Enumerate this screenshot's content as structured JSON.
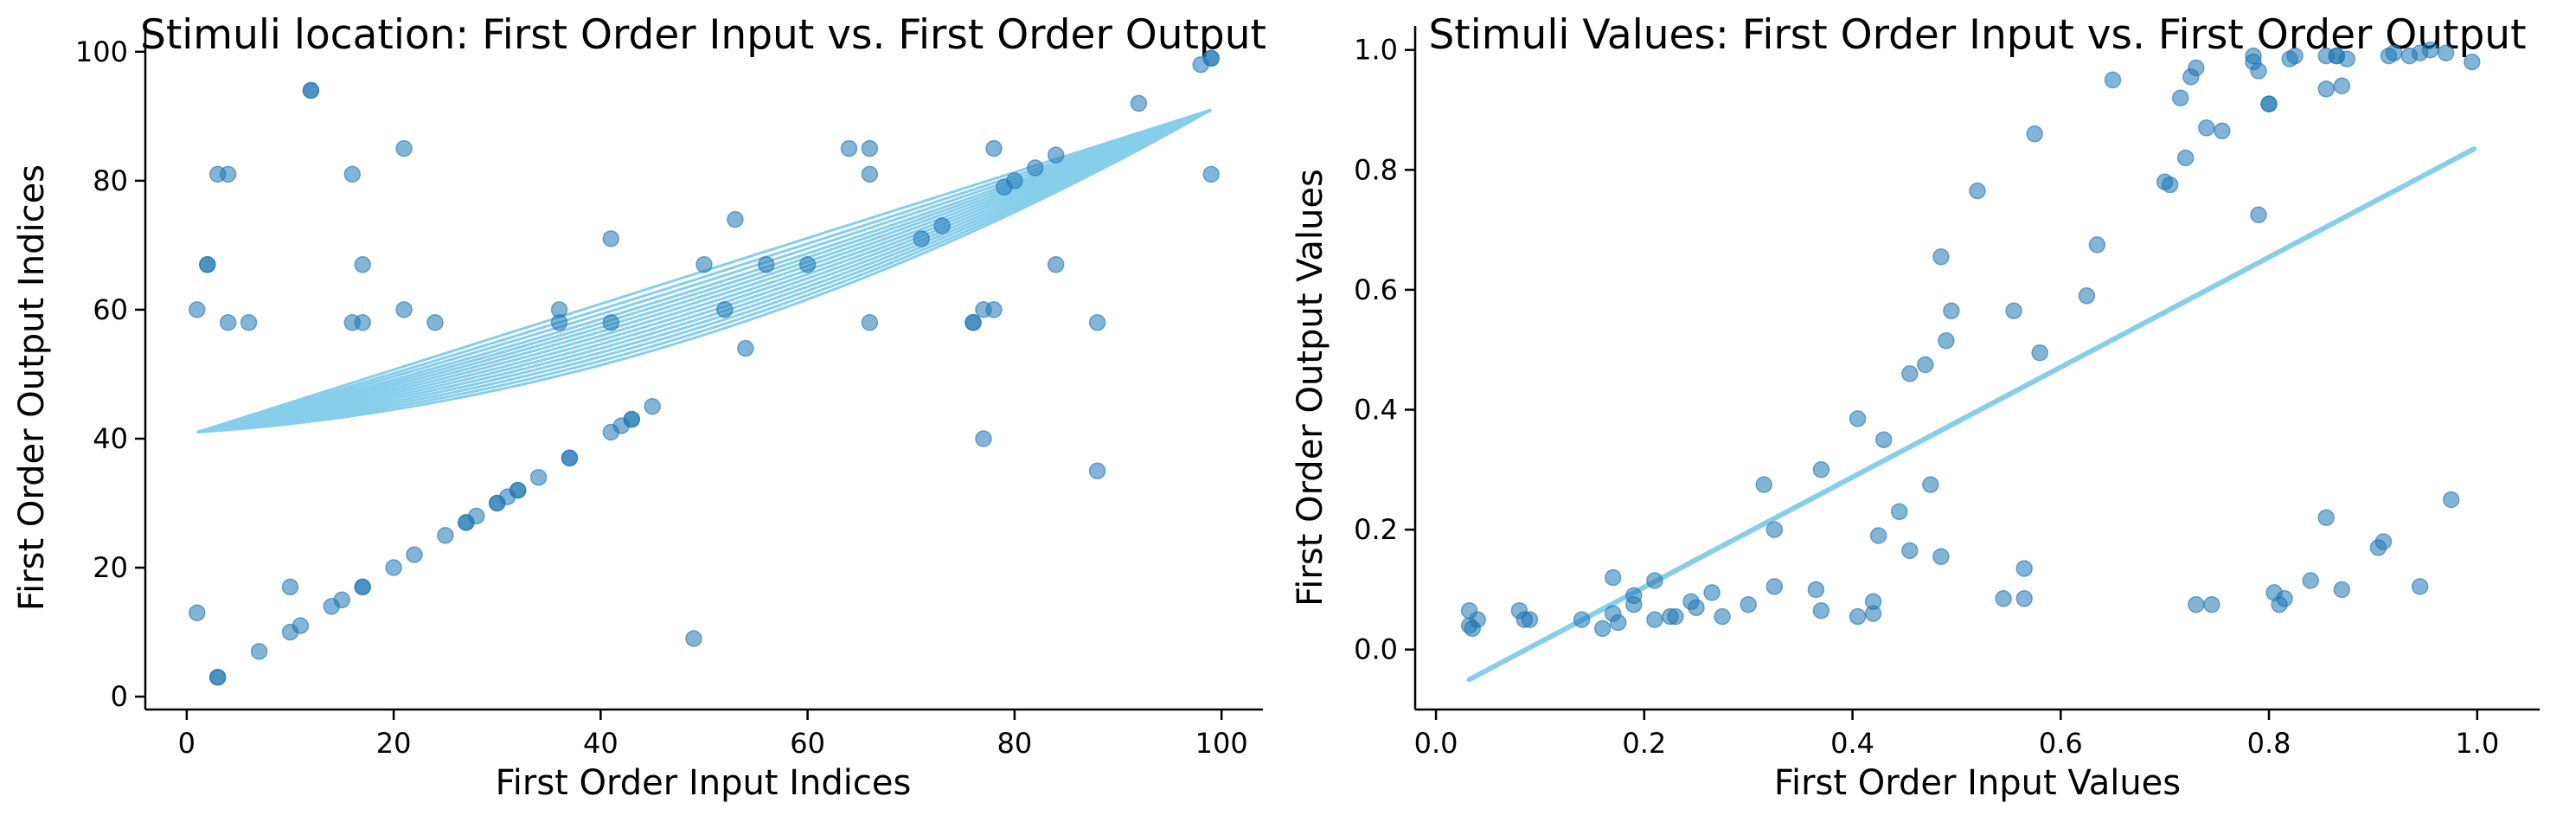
{
  "chart_data": [
    {
      "type": "scatter",
      "title": "Stimuli location: First Order Input vs. First Order Output",
      "xlabel": "First Order Input Indices",
      "ylabel": "First Order Output Indices",
      "xlim": [
        -4,
        104
      ],
      "ylim": [
        -2,
        104
      ],
      "xticks": [
        0,
        20,
        40,
        60,
        80,
        100
      ],
      "yticks": [
        0,
        20,
        40,
        60,
        80,
        100
      ],
      "grid": false,
      "points": [
        [
          1,
          60
        ],
        [
          1,
          13
        ],
        [
          2,
          67
        ],
        [
          2,
          67
        ],
        [
          3,
          81
        ],
        [
          3,
          3
        ],
        [
          3,
          3
        ],
        [
          4,
          58
        ],
        [
          4,
          81
        ],
        [
          6,
          58
        ],
        [
          7,
          7
        ],
        [
          10,
          10
        ],
        [
          10,
          17
        ],
        [
          11,
          11
        ],
        [
          12,
          94
        ],
        [
          12,
          94
        ],
        [
          14,
          14
        ],
        [
          15,
          15
        ],
        [
          16,
          81
        ],
        [
          16,
          58
        ],
        [
          17,
          58
        ],
        [
          17,
          67
        ],
        [
          17,
          17
        ],
        [
          17,
          17
        ],
        [
          20,
          20
        ],
        [
          21,
          60
        ],
        [
          21,
          85
        ],
        [
          22,
          22
        ],
        [
          24,
          58
        ],
        [
          25,
          25
        ],
        [
          27,
          27
        ],
        [
          27,
          27
        ],
        [
          28,
          28
        ],
        [
          30,
          30
        ],
        [
          30,
          30
        ],
        [
          31,
          31
        ],
        [
          32,
          32
        ],
        [
          32,
          32
        ],
        [
          34,
          34
        ],
        [
          36,
          58
        ],
        [
          36,
          60
        ],
        [
          37,
          37
        ],
        [
          37,
          37
        ],
        [
          41,
          71
        ],
        [
          41,
          58
        ],
        [
          41,
          41
        ],
        [
          42,
          42
        ],
        [
          43,
          43
        ],
        [
          43,
          43
        ],
        [
          45,
          45
        ],
        [
          49,
          9
        ],
        [
          50,
          67
        ],
        [
          52,
          60
        ],
        [
          53,
          74
        ],
        [
          54,
          54
        ],
        [
          56,
          67
        ],
        [
          60,
          67
        ],
        [
          64,
          85
        ],
        [
          66,
          85
        ],
        [
          66,
          81
        ],
        [
          66,
          58
        ],
        [
          71,
          71
        ],
        [
          73,
          73
        ],
        [
          76,
          58
        ],
        [
          76,
          58
        ],
        [
          77,
          60
        ],
        [
          77,
          40
        ],
        [
          78,
          60
        ],
        [
          78,
          85
        ],
        [
          79,
          79
        ],
        [
          80,
          80
        ],
        [
          82,
          82
        ],
        [
          84,
          84
        ],
        [
          84,
          67
        ],
        [
          88,
          58
        ],
        [
          88,
          35
        ],
        [
          92,
          92
        ],
        [
          98,
          98
        ],
        [
          99,
          99
        ],
        [
          99,
          99
        ],
        [
          99,
          81
        ]
      ],
      "fit_line": {
        "description": "curve through hull-like fan",
        "start": [
          1,
          41
        ],
        "end": [
          99,
          91
        ],
        "color": "#87ceeb"
      }
    },
    {
      "type": "scatter",
      "title": "Stimuli Values: First Order Input vs. First Order Output",
      "xlabel": "First Order Input Values",
      "ylabel": "First Order Output Values",
      "xlim": [
        -0.02,
        1.06
      ],
      "ylim": [
        -0.1,
        1.04
      ],
      "xticks": [
        0.0,
        0.2,
        0.4,
        0.6,
        0.8,
        1.0
      ],
      "yticks": [
        0.0,
        0.2,
        0.4,
        0.6,
        0.8,
        1.0
      ],
      "grid": false,
      "points": [
        [
          0.032,
          0.065
        ],
        [
          0.032,
          0.04
        ],
        [
          0.035,
          0.035
        ],
        [
          0.04,
          0.05
        ],
        [
          0.08,
          0.065
        ],
        [
          0.085,
          0.05
        ],
        [
          0.09,
          0.05
        ],
        [
          0.14,
          0.05
        ],
        [
          0.16,
          0.035
        ],
        [
          0.17,
          0.12
        ],
        [
          0.17,
          0.06
        ],
        [
          0.175,
          0.045
        ],
        [
          0.19,
          0.075
        ],
        [
          0.19,
          0.09
        ],
        [
          0.21,
          0.115
        ],
        [
          0.21,
          0.05
        ],
        [
          0.225,
          0.055
        ],
        [
          0.23,
          0.055
        ],
        [
          0.245,
          0.08
        ],
        [
          0.25,
          0.07
        ],
        [
          0.265,
          0.095
        ],
        [
          0.275,
          0.055
        ],
        [
          0.3,
          0.075
        ],
        [
          0.315,
          0.275
        ],
        [
          0.325,
          0.2
        ],
        [
          0.325,
          0.105
        ],
        [
          0.37,
          0.3
        ],
        [
          0.37,
          0.065
        ],
        [
          0.365,
          0.1
        ],
        [
          0.405,
          0.385
        ],
        [
          0.405,
          0.055
        ],
        [
          0.42,
          0.08
        ],
        [
          0.42,
          0.06
        ],
        [
          0.425,
          0.19
        ],
        [
          0.43,
          0.35
        ],
        [
          0.445,
          0.23
        ],
        [
          0.455,
          0.165
        ],
        [
          0.455,
          0.46
        ],
        [
          0.47,
          0.475
        ],
        [
          0.475,
          0.275
        ],
        [
          0.485,
          0.655
        ],
        [
          0.485,
          0.155
        ],
        [
          0.49,
          0.515
        ],
        [
          0.495,
          0.565
        ],
        [
          0.52,
          0.765
        ],
        [
          0.545,
          0.085
        ],
        [
          0.555,
          0.565
        ],
        [
          0.565,
          0.135
        ],
        [
          0.565,
          0.085
        ],
        [
          0.575,
          0.86
        ],
        [
          0.58,
          0.495
        ],
        [
          0.625,
          0.59
        ],
        [
          0.635,
          0.675
        ],
        [
          0.65,
          0.95
        ],
        [
          0.7,
          0.78
        ],
        [
          0.705,
          0.775
        ],
        [
          0.715,
          0.92
        ],
        [
          0.72,
          0.82
        ],
        [
          0.725,
          0.955
        ],
        [
          0.73,
          0.97
        ],
        [
          0.73,
          0.075
        ],
        [
          0.74,
          0.87
        ],
        [
          0.745,
          0.075
        ],
        [
          0.755,
          0.865
        ],
        [
          0.785,
          0.99
        ],
        [
          0.785,
          0.98
        ],
        [
          0.79,
          0.725
        ],
        [
          0.79,
          0.965
        ],
        [
          0.8,
          0.91
        ],
        [
          0.8,
          0.91
        ],
        [
          0.805,
          0.095
        ],
        [
          0.81,
          0.075
        ],
        [
          0.815,
          0.085
        ],
        [
          0.82,
          0.985
        ],
        [
          0.825,
          0.99
        ],
        [
          0.84,
          0.115
        ],
        [
          0.855,
          0.99
        ],
        [
          0.855,
          0.935
        ],
        [
          0.855,
          0.22
        ],
        [
          0.865,
          0.99
        ],
        [
          0.865,
          0.99
        ],
        [
          0.87,
          0.94
        ],
        [
          0.87,
          0.1
        ],
        [
          0.875,
          0.985
        ],
        [
          0.905,
          0.17
        ],
        [
          0.91,
          0.18
        ],
        [
          0.915,
          0.99
        ],
        [
          0.92,
          0.995
        ],
        [
          0.935,
          0.99
        ],
        [
          0.945,
          0.995
        ],
        [
          0.945,
          0.105
        ],
        [
          0.955,
          1.0
        ],
        [
          0.97,
          0.995
        ],
        [
          0.975,
          0.25
        ],
        [
          0.995,
          0.98
        ]
      ],
      "fit_line": {
        "x": [
          0.032,
          0.997
        ],
        "y": [
          -0.05,
          0.835
        ],
        "color": "#87ceeb"
      }
    }
  ]
}
